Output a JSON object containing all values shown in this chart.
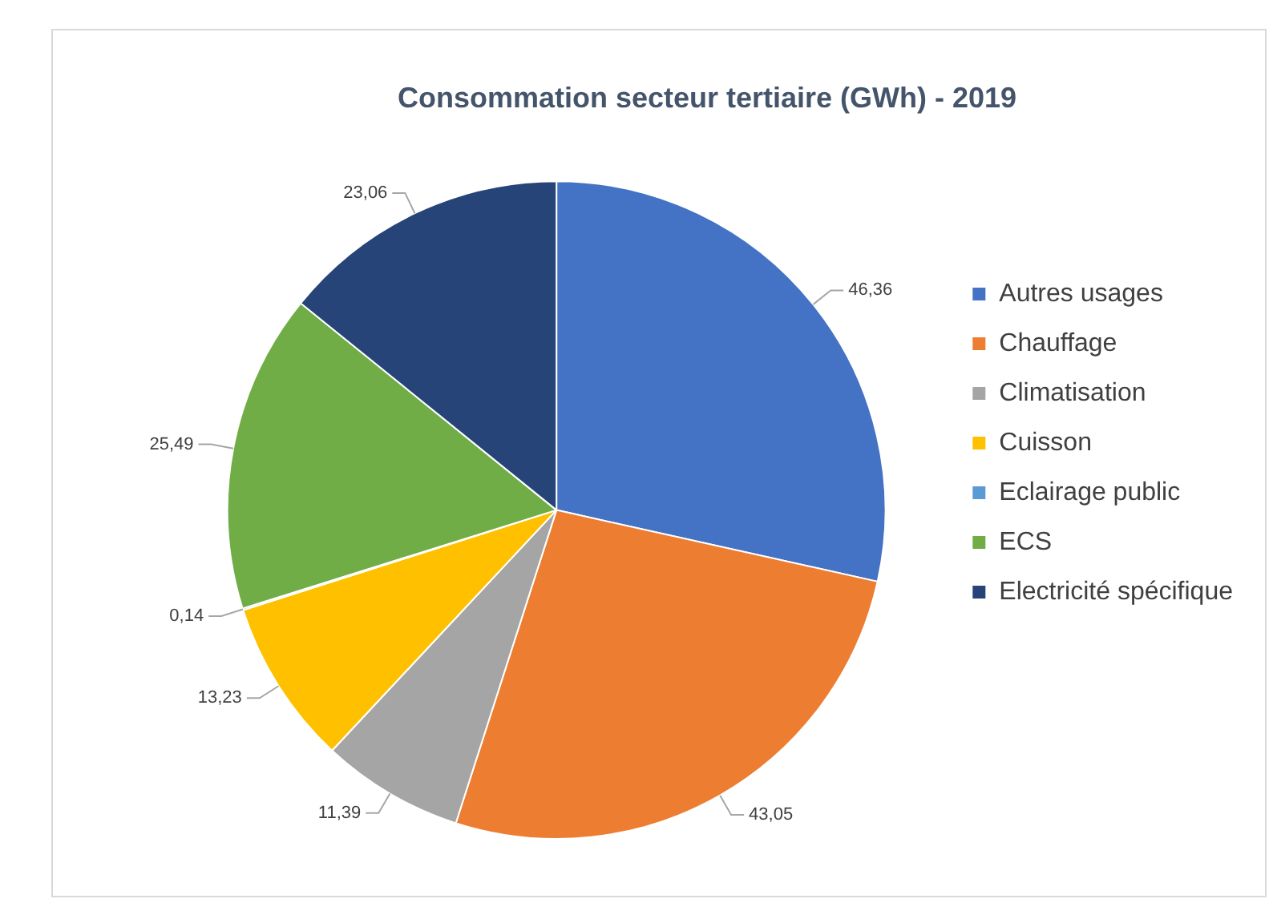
{
  "chart_data": {
    "type": "pie",
    "title": "Consommation secteur tertiaire (GWh) - 2019",
    "categories": [
      "Autres usages",
      "Chauffage",
      "Climatisation",
      "Cuisson",
      "Eclairage public",
      "ECS",
      "Electricité spécifique"
    ],
    "values": [
      46.36,
      43.05,
      11.39,
      13.23,
      0.14,
      25.49,
      23.06
    ],
    "value_labels": [
      "46,36",
      "43,05",
      "11,39",
      "13,23",
      "0,14",
      "25,49",
      "23,06"
    ],
    "colors": [
      "#4472c4",
      "#ed7d31",
      "#a5a5a5",
      "#ffc000",
      "#5b9bd5",
      "#70ad47",
      "#264478"
    ],
    "legend": "right"
  }
}
